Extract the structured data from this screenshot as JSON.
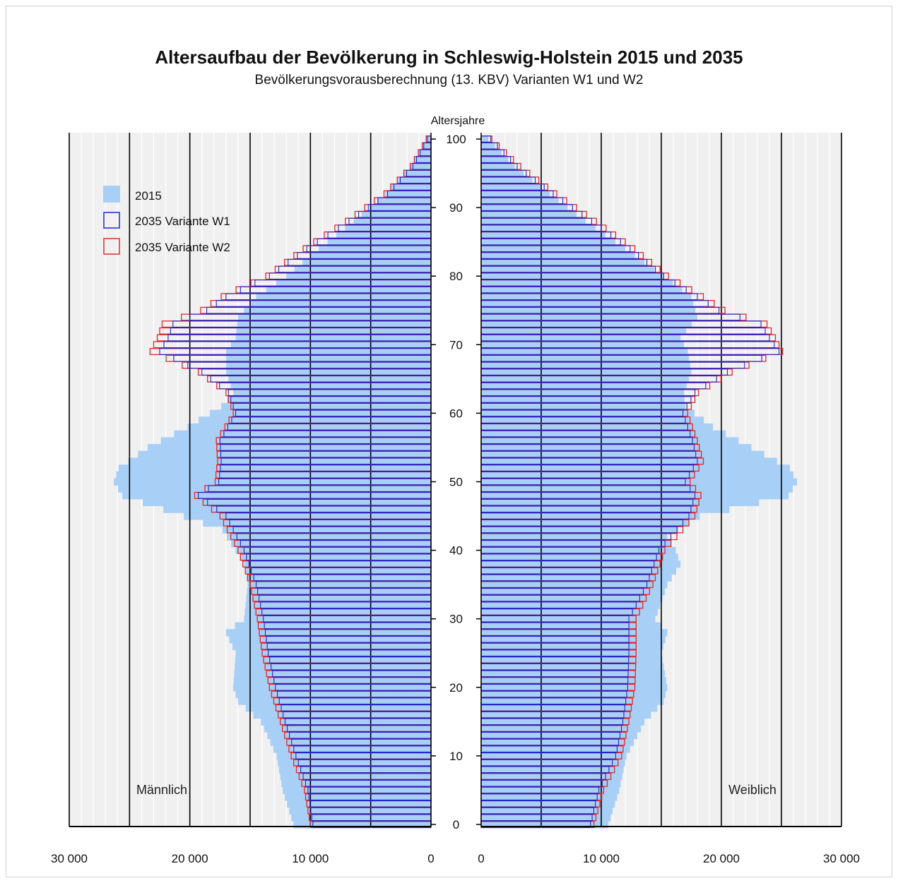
{
  "chart_data": {
    "type": "bar",
    "subtype": "population-pyramid",
    "title": "Altersaufbau der Bevölkerung in Schleswig-Holstein 2015 und 2035",
    "subtitle": "Bevölkerungsvorausberechnung (13. KBV) Varianten W1 und W2",
    "age_axis_label": "Altersjahre",
    "age_ticks": [
      0,
      10,
      20,
      30,
      40,
      50,
      60,
      70,
      80,
      90,
      100
    ],
    "x_ticks_left": [
      "30 000",
      "20 000",
      "10 000",
      "0"
    ],
    "x_ticks_right": [
      "0",
      "10 000",
      "20 000",
      "30 000"
    ],
    "xlim": [
      0,
      30000
    ],
    "ylim": [
      0,
      100
    ],
    "grid": true,
    "legend_position": "top-left",
    "panel_labels": {
      "male": "Männlich",
      "female": "Weiblich"
    },
    "colors": {
      "fill_2015": "#a8cff5",
      "w1": "#2626c8",
      "w2": "#e0282e",
      "panel": "#f0f0f0",
      "grid": "#000000"
    },
    "series": [
      {
        "name": "2015",
        "style": "filled",
        "male_anchors": [
          [
            0,
            11400
          ],
          [
            5,
            12300
          ],
          [
            10,
            12800
          ],
          [
            15,
            14100
          ],
          [
            18,
            16000
          ],
          [
            20,
            16400
          ],
          [
            25,
            16200
          ],
          [
            28,
            17000
          ],
          [
            30,
            15500
          ],
          [
            35,
            15200
          ],
          [
            38,
            15500
          ],
          [
            40,
            16200
          ],
          [
            43,
            17300
          ],
          [
            45,
            20500
          ],
          [
            48,
            25600
          ],
          [
            50,
            26300
          ],
          [
            52,
            25900
          ],
          [
            55,
            23500
          ],
          [
            58,
            20200
          ],
          [
            61,
            17400
          ],
          [
            63,
            16400
          ],
          [
            66,
            17000
          ],
          [
            69,
            17000
          ],
          [
            71,
            16200
          ],
          [
            74,
            16000
          ],
          [
            77,
            14500
          ],
          [
            80,
            12000
          ],
          [
            84,
            9300
          ],
          [
            88,
            6400
          ],
          [
            92,
            3800
          ],
          [
            96,
            1800
          ],
          [
            100,
            400
          ]
        ],
        "female_anchors": [
          [
            0,
            10600
          ],
          [
            5,
            11500
          ],
          [
            10,
            12100
          ],
          [
            15,
            13600
          ],
          [
            18,
            15200
          ],
          [
            20,
            15500
          ],
          [
            25,
            15000
          ],
          [
            28,
            15500
          ],
          [
            30,
            14500
          ],
          [
            35,
            15500
          ],
          [
            38,
            16600
          ],
          [
            40,
            16200
          ],
          [
            42,
            15500
          ],
          [
            45,
            18200
          ],
          [
            48,
            25600
          ],
          [
            50,
            26300
          ],
          [
            52,
            25700
          ],
          [
            55,
            22500
          ],
          [
            58,
            19300
          ],
          [
            61,
            17000
          ],
          [
            63,
            16900
          ],
          [
            66,
            17500
          ],
          [
            69,
            17200
          ],
          [
            71,
            16600
          ],
          [
            74,
            18000
          ],
          [
            77,
            17500
          ],
          [
            80,
            15200
          ],
          [
            84,
            12000
          ],
          [
            88,
            8700
          ],
          [
            92,
            5700
          ],
          [
            96,
            2800
          ],
          [
            100,
            600
          ]
        ]
      },
      {
        "name": "2035 Variante W1",
        "style": "outline",
        "male_anchors": [
          [
            0,
            9800
          ],
          [
            5,
            10200
          ],
          [
            10,
            11200
          ],
          [
            15,
            12100
          ],
          [
            20,
            12900
          ],
          [
            25,
            13500
          ],
          [
            30,
            13900
          ],
          [
            35,
            14500
          ],
          [
            40,
            15500
          ],
          [
            45,
            17000
          ],
          [
            48,
            19300
          ],
          [
            50,
            17600
          ],
          [
            53,
            17400
          ],
          [
            56,
            17500
          ],
          [
            60,
            16200
          ],
          [
            63,
            16800
          ],
          [
            66,
            19000
          ],
          [
            69,
            22500
          ],
          [
            71,
            21800
          ],
          [
            73,
            21400
          ],
          [
            75,
            18600
          ],
          [
            77,
            17000
          ],
          [
            80,
            13400
          ],
          [
            84,
            10300
          ],
          [
            88,
            6800
          ],
          [
            92,
            3600
          ],
          [
            96,
            1500
          ],
          [
            100,
            300
          ]
        ],
        "female_anchors": [
          [
            0,
            9100
          ],
          [
            5,
            9800
          ],
          [
            10,
            11200
          ],
          [
            15,
            11800
          ],
          [
            20,
            12200
          ],
          [
            25,
            12300
          ],
          [
            30,
            12300
          ],
          [
            35,
            13800
          ],
          [
            40,
            14800
          ],
          [
            45,
            17300
          ],
          [
            48,
            17800
          ],
          [
            50,
            17000
          ],
          [
            53,
            18000
          ],
          [
            56,
            17600
          ],
          [
            60,
            16800
          ],
          [
            63,
            17800
          ],
          [
            66,
            20500
          ],
          [
            69,
            24800
          ],
          [
            71,
            24000
          ],
          [
            73,
            23300
          ],
          [
            75,
            19800
          ],
          [
            77,
            18000
          ],
          [
            80,
            15200
          ],
          [
            84,
            12400
          ],
          [
            88,
            9200
          ],
          [
            92,
            6000
          ],
          [
            96,
            3000
          ],
          [
            100,
            800
          ]
        ]
      },
      {
        "name": "2035 Variante W2",
        "style": "outline",
        "male_anchors": [
          [
            0,
            10000
          ],
          [
            5,
            10500
          ],
          [
            10,
            11600
          ],
          [
            15,
            12500
          ],
          [
            20,
            13400
          ],
          [
            25,
            14000
          ],
          [
            30,
            14400
          ],
          [
            35,
            15000
          ],
          [
            40,
            16000
          ],
          [
            45,
            17500
          ],
          [
            48,
            19600
          ],
          [
            50,
            17900
          ],
          [
            53,
            17700
          ],
          [
            56,
            17800
          ],
          [
            60,
            16400
          ],
          [
            63,
            17000
          ],
          [
            66,
            19300
          ],
          [
            69,
            23300
          ],
          [
            71,
            22700
          ],
          [
            73,
            22300
          ],
          [
            75,
            19100
          ],
          [
            77,
            17400
          ],
          [
            80,
            13700
          ],
          [
            84,
            10600
          ],
          [
            88,
            7100
          ],
          [
            92,
            3900
          ],
          [
            96,
            1700
          ],
          [
            100,
            400
          ]
        ],
        "female_anchors": [
          [
            0,
            9400
          ],
          [
            5,
            10200
          ],
          [
            10,
            11700
          ],
          [
            15,
            12300
          ],
          [
            20,
            12800
          ],
          [
            25,
            12900
          ],
          [
            30,
            12900
          ],
          [
            35,
            14300
          ],
          [
            40,
            15300
          ],
          [
            45,
            17800
          ],
          [
            48,
            18300
          ],
          [
            50,
            17400
          ],
          [
            53,
            18500
          ],
          [
            56,
            18000
          ],
          [
            60,
            17200
          ],
          [
            63,
            18100
          ],
          [
            66,
            20900
          ],
          [
            69,
            25100
          ],
          [
            71,
            24500
          ],
          [
            73,
            23800
          ],
          [
            75,
            20300
          ],
          [
            77,
            18500
          ],
          [
            80,
            15600
          ],
          [
            84,
            12800
          ],
          [
            88,
            9600
          ],
          [
            92,
            6300
          ],
          [
            96,
            3300
          ],
          [
            100,
            900
          ]
        ]
      }
    ]
  }
}
